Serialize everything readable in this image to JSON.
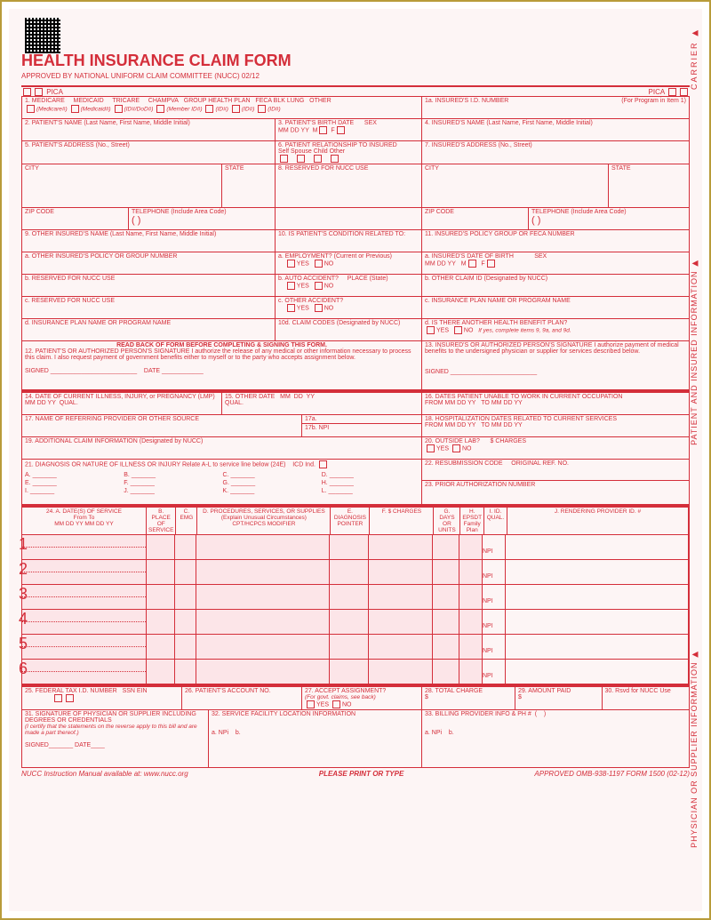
{
  "title": "HEALTH INSURANCE CLAIM FORM",
  "subtitle": "APPROVED BY NATIONAL UNIFORM CLAIM COMMITTEE (NUCC) 02/12",
  "pica": "PICA",
  "carrier_tab": "CARRIER ▶",
  "patient_tab": "PATIENT AND INSURED INFORMATION ▶",
  "supplier_tab": "PHYSICIAN OR SUPPLIER INFORMATION ▶",
  "box1": {
    "opts": [
      "MEDICARE",
      "MEDICAID",
      "TRICARE",
      "CHAMPVA",
      "GROUP HEALTH PLAN",
      "FECA BLK LUNG",
      "OTHER"
    ],
    "subs": [
      "(Medicare#)",
      "(Medicaid#)",
      "(ID#/DoD#)",
      "(Member ID#)",
      "(ID#)",
      "(ID#)",
      "(ID#)"
    ]
  },
  "f": {
    "1a": "1a. INSURED'S I.D. NUMBER",
    "1a_hint": "(For Program in Item 1)",
    "2": "2. PATIENT'S NAME (Last Name, First Name, Middle Initial)",
    "3": "3. PATIENT'S BIRTH DATE",
    "3_mdy": "MM    DD    YY",
    "3_sex": "SEX",
    "4": "4. INSURED'S NAME (Last Name, First Name, Middle Initial)",
    "5": "5. PATIENT'S ADDRESS (No., Street)",
    "6": "6. PATIENT RELATIONSHIP TO INSURED",
    "6_opts": "Self     Spouse     Child     Other",
    "7": "7. INSURED'S ADDRESS (No., Street)",
    "city": "CITY",
    "state": "STATE",
    "8": "8. RESERVED FOR NUCC USE",
    "zip": "ZIP CODE",
    "tel": "TELEPHONE (Include Area Code)",
    "paren": "(          )",
    "9": "9. OTHER INSURED'S NAME (Last Name, First Name, Middle Initial)",
    "9a": "a. OTHER INSURED'S POLICY OR GROUP NUMBER",
    "9b": "b. RESERVED FOR NUCC USE",
    "9c": "c. RESERVED FOR NUCC USE",
    "9d": "d. INSURANCE PLAN NAME OR PROGRAM NAME",
    "10": "10. IS PATIENT'S CONDITION RELATED TO:",
    "10a": "a. EMPLOYMENT? (Current or Previous)",
    "10b": "b. AUTO ACCIDENT?",
    "10b_place": "PLACE (State)",
    "10c": "c. OTHER ACCIDENT?",
    "10d": "10d. CLAIM CODES (Designated by NUCC)",
    "yes": "YES",
    "no": "NO",
    "11": "11. INSURED'S POLICY GROUP OR FECA NUMBER",
    "11a": "a. INSURED'S DATE OF BIRTH",
    "11b": "b. OTHER CLAIM ID (Designated by NUCC)",
    "11c": "c. INSURANCE PLAN NAME OR PROGRAM NAME",
    "11d": "d. IS THERE ANOTHER HEALTH BENEFIT PLAN?",
    "11d_hint": "If yes, complete items 9, 9a, and 9d.",
    "readback": "READ BACK OF FORM BEFORE COMPLETING & SIGNING THIS FORM.",
    "12": "12. PATIENT'S OR AUTHORIZED PERSON'S SIGNATURE I authorize the release of any medical or other information necessary to process this claim. I also request payment of government benefits either to myself or to the party who accepts assignment below.",
    "13": "13. INSURED'S OR AUTHORIZED PERSON'S SIGNATURE I authorize payment of medical benefits to the undersigned physician or supplier for services described below.",
    "signed": "SIGNED",
    "date": "DATE",
    "14": "14. DATE OF CURRENT ILLNESS, INJURY, or PREGNANCY (LMP)",
    "qual": "QUAL.",
    "15": "15. OTHER DATE",
    "16": "16. DATES PATIENT UNABLE TO WORK IN CURRENT OCCUPATION",
    "from": "FROM",
    "to": "TO",
    "17": "17. NAME OF REFERRING PROVIDER OR OTHER SOURCE",
    "17a": "17a.",
    "17b": "17b.  NPI",
    "18": "18. HOSPITALIZATION DATES RELATED TO CURRENT SERVICES",
    "19": "19. ADDITIONAL CLAIM INFORMATION (Designated by NUCC)",
    "20": "20. OUTSIDE LAB?",
    "20_charges": "$ CHARGES",
    "21": "21. DIAGNOSIS OR NATURE OF ILLNESS OR INJURY  Relate A-L to service line below (24E)",
    "21_icd": "ICD Ind.",
    "21_letters": [
      "A.",
      "B.",
      "C.",
      "D.",
      "E.",
      "F.",
      "G.",
      "H.",
      "I.",
      "J.",
      "K.",
      "L."
    ],
    "22": "22. RESUBMISSION CODE",
    "22_orig": "ORIGINAL REF. NO.",
    "23": "23. PRIOR AUTHORIZATION NUMBER",
    "24": {
      "a": "24. A.    DATE(S) OF SERVICE",
      "a_sub": "From                To",
      "a_mdy": "MM   DD   YY    MM   DD   YY",
      "b": "B. PLACE OF SERVICE",
      "c": "C. EMG",
      "d": "D. PROCEDURES, SERVICES, OR SUPPLIES",
      "d_sub": "(Explain Unusual Circumstances)",
      "d_cpt": "CPT/HCPCS            MODIFIER",
      "e": "E. DIAGNOSIS POINTER",
      "f": "F. $ CHARGES",
      "g": "G. DAYS OR UNITS",
      "h": "H. EPSDT Family Plan",
      "i": "I. ID. QUAL.",
      "j": "J. RENDERING PROVIDER ID. #",
      "npi": "NPI"
    },
    "25": "25. FEDERAL TAX I.D. NUMBER",
    "25_ssn": "SSN  EIN",
    "26": "26. PATIENT'S ACCOUNT NO.",
    "27": "27. ACCEPT ASSIGNMENT?",
    "27_hint": "(For govt. claims, see back)",
    "28": "28. TOTAL CHARGE",
    "29": "29. AMOUNT PAID",
    "30": "30. Rsvd for NUCC Use",
    "31": "31. SIGNATURE OF PHYSICIAN OR SUPPLIER INCLUDING DEGREES OR CREDENTIALS",
    "31_cert": "(I certify that the statements on the reverse apply to this bill and are made a part thereof.)",
    "32": "32. SERVICE FACILITY LOCATION INFORMATION",
    "33": "33. BILLING PROVIDER INFO & PH #",
    "a_sub": "a.",
    "b_sub": "b."
  },
  "footer": {
    "left": "NUCC Instruction Manual available at: www.nucc.org",
    "center": "PLEASE PRINT OR TYPE",
    "right": "APPROVED OMB-938-1197 FORM 1500 (02-12)"
  },
  "colors": {
    "red": "#d42e3a",
    "pink": "#fce5e8",
    "bg": "#fdf5f5"
  }
}
